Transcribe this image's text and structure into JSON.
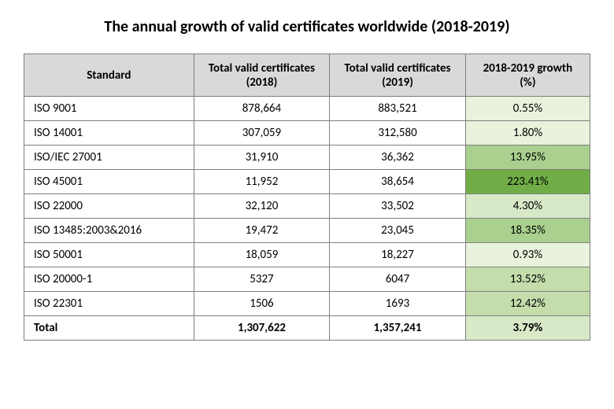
{
  "title": "The annual growth of valid certificates worldwide (2018-2019)",
  "columns": [
    "Standard",
    "Total valid certificates (2018)",
    "Total valid certificates (2019)",
    "2018-2019 growth (%)"
  ],
  "column_widths_pct": [
    30,
    24,
    24,
    22
  ],
  "colors": {
    "header_bg": "#d9d9d9",
    "border": "#7f7f7f",
    "text": "#000000",
    "background": "#ffffff",
    "title_fontsize_pt": 15,
    "header_fontsize_pt": 11,
    "cell_fontsize_pt": 11
  },
  "growth_shades": {
    "lightest": "#e8f2dc",
    "light": "#d8e9c8",
    "mid": "#c4ddab",
    "dark": "#a9d08e",
    "darkest": "#70ad47"
  },
  "rows": [
    {
      "standard": "ISO 9001",
      "y2018": "878,664",
      "y2019": "883,521",
      "growth": "0.55%",
      "shade": "lightest"
    },
    {
      "standard": "ISO 14001",
      "y2018": "307,059",
      "y2019": "312,580",
      "growth": "1.80%",
      "shade": "lightest"
    },
    {
      "standard": "ISO/IEC 27001",
      "y2018": "31,910",
      "y2019": "36,362",
      "growth": "13.95%",
      "shade": "dark"
    },
    {
      "standard": "ISO 45001",
      "y2018": "11,952",
      "y2019": "38,654",
      "growth": "223.41%",
      "shade": "darkest"
    },
    {
      "standard": "ISO 22000",
      "y2018": "32,120",
      "y2019": "33,502",
      "growth": "4.30%",
      "shade": "light"
    },
    {
      "standard": "ISO 13485:2003&2016",
      "y2018": "19,472",
      "y2019": "23,045",
      "growth": "18.35%",
      "shade": "dark"
    },
    {
      "standard": "ISO 50001",
      "y2018": "18,059",
      "y2019": "18,227",
      "growth": "0.93%",
      "shade": "lightest"
    },
    {
      "standard": "ISO 20000-1",
      "y2018": "5327",
      "y2019": "6047",
      "growth": "13.52%",
      "shade": "mid"
    },
    {
      "standard": "ISO 22301",
      "y2018": "1506",
      "y2019": "1693",
      "growth": "12.42%",
      "shade": "mid"
    }
  ],
  "total": {
    "label": "Total",
    "y2018": "1,307,622",
    "y2019": "1,357,241",
    "growth": "3.79%",
    "shade": "light"
  }
}
